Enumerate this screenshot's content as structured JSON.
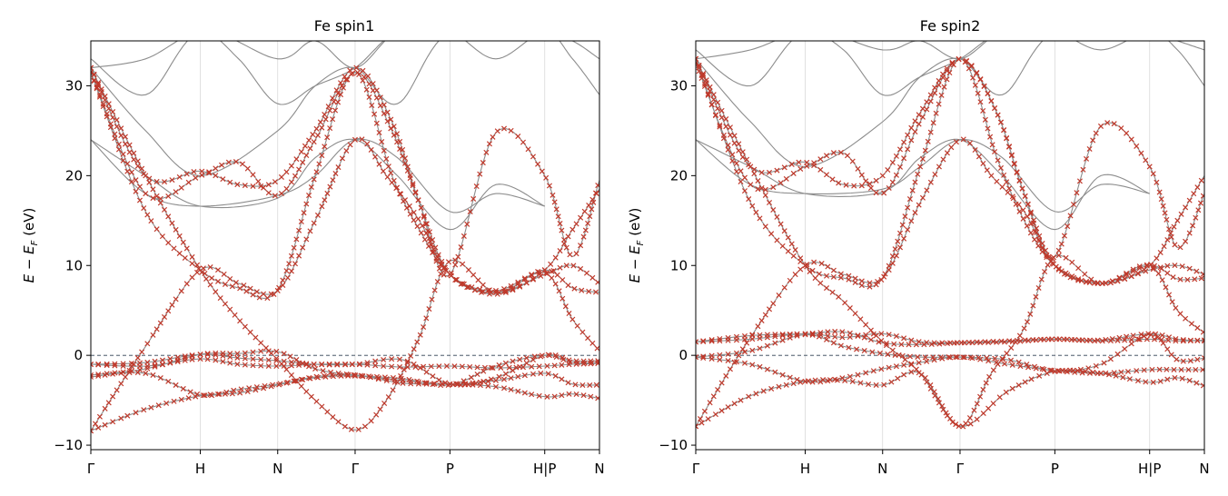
{
  "figure": {
    "colors": {
      "background": "#ffffff",
      "band_line": "#8c8c8c",
      "marker": "#c0392b",
      "fermi_line": "#2c3e50",
      "kpoint_line": "#d9d9d9",
      "axis": "#000000"
    }
  },
  "chart_data": [
    {
      "type": "line",
      "title": "Fe  spin1",
      "ylabel": "E − E_F  (eV)",
      "xlabel": "",
      "ylim": [
        -10.5,
        35
      ],
      "yticks": [
        -10,
        0,
        10,
        20,
        30
      ],
      "ytick_labels": [
        "−10",
        "0",
        "10",
        "20",
        "30"
      ],
      "kpoint_labels": [
        "Γ",
        "H",
        "N",
        "Γ",
        "P",
        "H|P",
        "N"
      ],
      "kpoint_x": [
        0,
        1.0,
        1.707,
        2.414,
        3.28,
        4.146,
        4.646
      ],
      "fermi_level": 0,
      "grid": "vertical lines at high-symmetry points",
      "marker": "x",
      "bands": [
        {
          "x": [
            0,
            0.5,
            1.0,
            1.35,
            1.707,
            2.05,
            2.414,
            2.85,
            3.28,
            3.7,
            4.146,
            4.4,
            4.646
          ],
          "y": [
            -8.4,
            -6,
            -4.5,
            -4.2,
            -3.3,
            -2.4,
            -2.2,
            -3.1,
            -3.2,
            -3.5,
            -4.6,
            -4.3,
            -4.8
          ],
          "marked": true
        },
        {
          "x": [
            0,
            0.5,
            1.0,
            1.35,
            1.707,
            2.05,
            2.414,
            2.85,
            3.28,
            3.7,
            4.146,
            4.4,
            4.646
          ],
          "y": [
            -2.4,
            -2.0,
            -4.4,
            -3.8,
            -3.2,
            -2.5,
            -2.3,
            -2.8,
            -3.2,
            -2.8,
            -2.0,
            -3.2,
            -3.3
          ],
          "marked": true
        },
        {
          "x": [
            0,
            0.5,
            1.0,
            1.35,
            1.707,
            2.05,
            2.414,
            2.85,
            3.28,
            3.7,
            4.146,
            4.4,
            4.646
          ],
          "y": [
            -2.2,
            -1.5,
            0.1,
            0.2,
            0.4,
            -1.5,
            -2.2,
            -2.6,
            -3.3,
            -1.2,
            0.0,
            -0.8,
            -0.8
          ],
          "marked": true
        },
        {
          "x": [
            0,
            0.5,
            1.0,
            1.35,
            1.707,
            2.05,
            2.414,
            2.85,
            3.28,
            3.7,
            4.146,
            4.4,
            4.646
          ],
          "y": [
            -1.0,
            -0.8,
            0.1,
            -0.3,
            -0.6,
            -1.0,
            -1.0,
            -0.5,
            -3.2,
            -2.5,
            0.0,
            -0.6,
            -0.6
          ],
          "marked": true
        },
        {
          "x": [
            0,
            0.5,
            1.0,
            1.35,
            1.707,
            2.05,
            2.414,
            2.85,
            3.28,
            3.7,
            4.146,
            4.4,
            4.646
          ],
          "y": [
            -1.0,
            -1.2,
            -0.4,
            -1.0,
            -1.2,
            -1.0,
            -1.0,
            -1.3,
            -1.2,
            -1.4,
            -1.2,
            -1.0,
            -0.9
          ],
          "marked": true
        },
        {
          "x": [
            0,
            0.5,
            1.0,
            1.35,
            1.707,
            2.05,
            2.414,
            2.7,
            3.0,
            3.28,
            3.7,
            4.146,
            4.4,
            4.646
          ],
          "y": [
            32,
            20,
            9.5,
            4,
            -0.5,
            -5,
            -8.3,
            -5,
            2,
            10.5,
            7,
            9.2,
            4,
            0.5
          ],
          "marked": true
        },
        {
          "x": [
            0,
            0.5,
            1.0,
            1.35,
            1.707,
            2.05,
            2.414,
            2.7,
            3.0,
            3.28,
            3.7,
            4.146,
            4.4,
            4.646
          ],
          "y": [
            -8.4,
            1,
            9.5,
            8,
            7.2,
            15,
            24,
            20,
            15,
            9,
            7.2,
            9.5,
            7.5,
            7.0
          ],
          "marked": true
        },
        {
          "x": [
            0,
            0.5,
            1.0,
            1.35,
            1.707,
            2.05,
            2.414,
            2.75,
            3.0,
            3.28,
            3.7,
            4.146,
            4.4,
            4.646
          ],
          "y": [
            31.5,
            16,
            9.5,
            7.5,
            7.3,
            20,
            31.5,
            20,
            14,
            9,
            6.8,
            9.5,
            14,
            18.5
          ],
          "marked": true
        },
        {
          "x": [
            0,
            0.5,
            1.0,
            1.35,
            1.707,
            2.05,
            2.414,
            2.75,
            3.0,
            3.28,
            3.7,
            4.146,
            4.4,
            4.646
          ],
          "y": [
            31.5,
            18,
            20,
            21.5,
            17.8,
            24,
            31.5,
            25,
            17,
            9,
            24.8,
            20,
            11,
            19.5
          ],
          "marked": true
        },
        {
          "x": [
            0,
            0.5,
            1.0,
            1.35,
            1.707,
            2.05,
            2.414,
            2.75,
            3.0,
            3.28,
            3.7,
            4.146,
            4.4,
            4.646
          ],
          "y": [
            32,
            20,
            20.5,
            19,
            19.5,
            25,
            32,
            26,
            17,
            9,
            7,
            9,
            10,
            8
          ],
          "marked": true
        },
        {
          "x": [
            0,
            0.5,
            1.0,
            1.707,
            2.05,
            2.414,
            2.8,
            3.28,
            3.7,
            4.146
          ],
          "y": [
            24,
            18,
            16.6,
            17.8,
            20,
            24,
            22,
            16,
            18,
            16.6
          ],
          "marked": false
        },
        {
          "x": [
            0,
            0.5,
            1.0,
            1.707,
            2.05,
            2.414,
            2.8,
            3.28,
            3.7,
            4.146
          ],
          "y": [
            24,
            20,
            16.6,
            17.5,
            22,
            24,
            20,
            14,
            19,
            16.6
          ],
          "marked": false
        },
        {
          "x": [
            0,
            0.5,
            1.0,
            1.707,
            2.05,
            2.414,
            2.8,
            3.28,
            4.146
          ],
          "y": [
            32,
            25,
            20,
            25,
            30,
            32,
            28,
            36,
            36
          ],
          "marked": false
        },
        {
          "x": [
            0,
            0.5,
            1.0,
            1.35,
            1.707,
            2.05,
            2.414,
            2.8,
            3.28,
            3.7,
            4.146,
            4.4,
            4.646
          ],
          "y": [
            32,
            33,
            36,
            33,
            28,
            30,
            32,
            36,
            36,
            33,
            36,
            33,
            29
          ],
          "marked": false
        },
        {
          "x": [
            0,
            0.5,
            1.0,
            1.707,
            2.05,
            2.414,
            2.8,
            3.28,
            3.7,
            4.146,
            4.4,
            4.646
          ],
          "y": [
            33,
            29,
            36,
            33,
            35,
            32,
            36,
            36,
            35,
            36,
            35,
            33
          ],
          "marked": false
        }
      ]
    },
    {
      "type": "line",
      "title": "Fe  spin2",
      "ylabel": "E − E_F  (eV)",
      "xlabel": "",
      "ylim": [
        -10.5,
        35
      ],
      "yticks": [
        -10,
        0,
        10,
        20,
        30
      ],
      "ytick_labels": [
        "−10",
        "0",
        "10",
        "20",
        "30"
      ],
      "kpoint_labels": [
        "Γ",
        "H",
        "N",
        "Γ",
        "P",
        "H|P",
        "N"
      ],
      "kpoint_x": [
        0,
        1.0,
        1.707,
        2.414,
        3.28,
        4.146,
        4.646
      ],
      "fermi_level": 0,
      "grid": "vertical lines at high-symmetry points",
      "marker": "x",
      "bands": [
        {
          "x": [
            0,
            0.5,
            1.0,
            1.35,
            1.707,
            2.05,
            2.414,
            2.85,
            3.28,
            3.7,
            4.146,
            4.4,
            4.646
          ],
          "y": [
            -7.9,
            -4.5,
            -2.9,
            -2.8,
            -3.3,
            -2.0,
            -7.9,
            -4.0,
            -1.8,
            -2.0,
            -3.0,
            -2.5,
            -3.4
          ],
          "marked": true
        },
        {
          "x": [
            0,
            0.5,
            1.0,
            1.35,
            1.707,
            2.05,
            2.414,
            2.85,
            3.28,
            3.7,
            4.146,
            4.4,
            4.646
          ],
          "y": [
            -0.2,
            -1.0,
            -2.9,
            -2.5,
            -1.5,
            -0.8,
            -0.2,
            -1.0,
            -1.7,
            -2.0,
            -1.6,
            -1.6,
            -1.6
          ],
          "marked": true
        },
        {
          "x": [
            0,
            0.5,
            1.0,
            1.35,
            1.707,
            2.05,
            2.414,
            2.85,
            3.28,
            3.7,
            4.146,
            4.4,
            4.646
          ],
          "y": [
            -0.2,
            0.5,
            2.3,
            1.0,
            0.2,
            -0.2,
            -0.2,
            -0.5,
            -1.7,
            -1.0,
            2.3,
            -0.5,
            -0.3
          ],
          "marked": true
        },
        {
          "x": [
            0,
            0.5,
            1.0,
            1.35,
            1.707,
            2.05,
            2.414,
            2.85,
            3.28,
            3.7,
            4.146,
            4.4,
            4.646
          ],
          "y": [
            1.5,
            1.8,
            2.4,
            2.0,
            2.4,
            1.5,
            1.4,
            1.5,
            1.8,
            1.7,
            2.4,
            1.8,
            1.6
          ],
          "marked": true
        },
        {
          "x": [
            0,
            0.5,
            1.0,
            1.35,
            1.707,
            2.05,
            2.414,
            2.85,
            3.28,
            3.7,
            4.146,
            4.4,
            4.646
          ],
          "y": [
            1.5,
            2.2,
            2.4,
            2.6,
            1.4,
            1.2,
            1.4,
            1.6,
            1.8,
            1.6,
            1.8,
            1.6,
            1.7
          ],
          "marked": true
        },
        {
          "x": [
            0,
            0.5,
            1.0,
            1.35,
            1.707,
            2.05,
            2.414,
            2.7,
            3.0,
            3.28,
            3.7,
            4.146,
            4.4,
            4.646
          ],
          "y": [
            33,
            21,
            10,
            6,
            1.5,
            -2,
            -7.9,
            -2,
            3,
            11,
            8,
            10,
            5,
            2.5
          ],
          "marked": true
        },
        {
          "x": [
            0,
            0.5,
            1.0,
            1.35,
            1.707,
            2.05,
            2.414,
            2.7,
            3.0,
            3.28,
            3.7,
            4.146,
            4.4,
            4.646
          ],
          "y": [
            -7.9,
            2,
            10,
            9,
            8.6,
            17,
            24,
            20,
            16,
            10,
            8,
            10,
            8.5,
            8.6
          ],
          "marked": true
        },
        {
          "x": [
            0,
            0.5,
            1.0,
            1.35,
            1.707,
            2.05,
            2.414,
            2.75,
            3.0,
            3.28,
            3.7,
            4.146,
            4.4,
            4.646
          ],
          "y": [
            33,
            17,
            10,
            8.6,
            8.6,
            21,
            33,
            22,
            15,
            10,
            8,
            10,
            15,
            20
          ],
          "marked": true
        },
        {
          "x": [
            0,
            0.5,
            1.0,
            1.35,
            1.707,
            2.05,
            2.414,
            2.75,
            3.0,
            3.28,
            3.7,
            4.146,
            4.4,
            4.646
          ],
          "y": [
            32.5,
            19,
            21,
            22.5,
            18,
            26,
            33,
            27,
            18,
            11,
            25.5,
            21,
            12,
            18
          ],
          "marked": true
        },
        {
          "x": [
            0,
            0.5,
            1.0,
            1.35,
            1.707,
            2.05,
            2.414,
            2.75,
            3.0,
            3.28,
            3.7,
            4.146,
            4.4,
            4.646
          ],
          "y": [
            33,
            21,
            21.5,
            19,
            20,
            27,
            33,
            27,
            18,
            10,
            8,
            9.5,
            10,
            9
          ],
          "marked": true
        },
        {
          "x": [
            0,
            0.5,
            1.0,
            1.707,
            2.05,
            2.414,
            2.8,
            3.28,
            3.7,
            4.146
          ],
          "y": [
            24,
            19,
            18,
            18.5,
            21,
            24,
            22,
            16,
            19,
            18
          ],
          "marked": false
        },
        {
          "x": [
            0,
            0.5,
            1.0,
            1.707,
            2.05,
            2.414,
            2.8,
            3.28,
            3.7,
            4.146
          ],
          "y": [
            24,
            21,
            18,
            18.2,
            22,
            24,
            20,
            14,
            20,
            18
          ],
          "marked": false
        },
        {
          "x": [
            0,
            0.5,
            1.0,
            1.707,
            2.05,
            2.414,
            2.8,
            3.28,
            4.146
          ],
          "y": [
            33,
            26,
            21,
            26,
            31,
            33,
            29,
            36,
            36
          ],
          "marked": false
        },
        {
          "x": [
            0,
            0.5,
            1.0,
            1.35,
            1.707,
            2.05,
            2.414,
            2.8,
            3.28,
            3.7,
            4.146,
            4.4,
            4.646
          ],
          "y": [
            33,
            34,
            36,
            34,
            29,
            31,
            33,
            36,
            36,
            34,
            36,
            34,
            30
          ],
          "marked": false
        },
        {
          "x": [
            0,
            0.5,
            1.0,
            1.707,
            2.05,
            2.414,
            2.8,
            3.28,
            3.7,
            4.146,
            4.4,
            4.646
          ],
          "y": [
            34,
            30,
            36,
            34,
            35,
            33,
            36,
            36,
            35,
            36,
            35,
            34
          ],
          "marked": false
        }
      ]
    }
  ]
}
